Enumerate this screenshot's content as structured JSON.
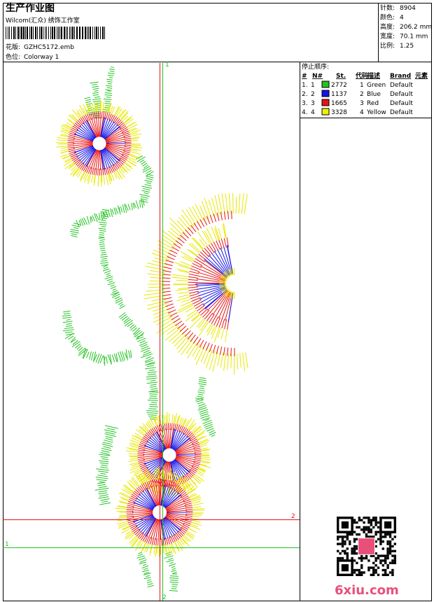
{
  "header": {
    "title": "生产作业图",
    "studio": "Wilcom(汇众) 绣饰工作室",
    "design_label": "花版:",
    "design_file": "GZHC5172.emb",
    "colorway_label": "色位:",
    "colorway": "Colorway 1"
  },
  "info": [
    {
      "label": "针数:",
      "value": "8904"
    },
    {
      "label": "颜色:",
      "value": "4"
    },
    {
      "label": "高度:",
      "value": "206.2 mm"
    },
    {
      "label": "宽度:",
      "value": "70.1 mm"
    },
    {
      "label": "比例:",
      "value": "1.25"
    }
  ],
  "stop_table": {
    "title": "停止顺序:",
    "columns": [
      "#",
      "N#",
      "St.",
      "代码",
      "描述",
      "Brand",
      "元素"
    ],
    "rows": [
      {
        "index": "1.",
        "needle": "1",
        "color": "#22c322",
        "stitches": 2772,
        "code": "1",
        "description": "Green",
        "brand": "Default"
      },
      {
        "index": "2.",
        "needle": "2",
        "color": "#1414e6",
        "stitches": 1137,
        "code": "2",
        "description": "Blue",
        "brand": "Default"
      },
      {
        "index": "3.",
        "needle": "3",
        "color": "#e61414",
        "stitches": 1665,
        "code": "3",
        "description": "Red",
        "brand": "Default"
      },
      {
        "index": "4.",
        "needle": "4",
        "color": "#f0f000",
        "stitches": 3328,
        "code": "4",
        "description": "Yellow",
        "brand": "Default"
      }
    ]
  },
  "guides": [
    {
      "label": "1"
    },
    {
      "label": "2"
    },
    {
      "label": "2"
    },
    {
      "label": "1"
    }
  ],
  "watermark": "6xiu.com"
}
